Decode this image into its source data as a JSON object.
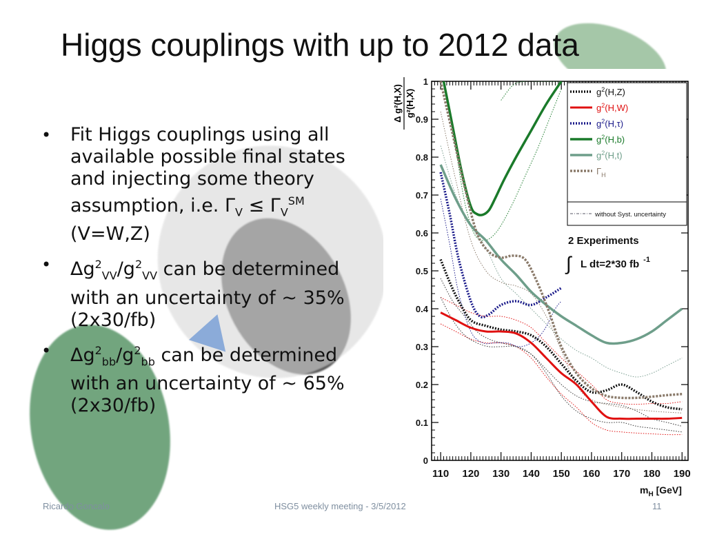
{
  "slide": {
    "title": "Higgs couplings with up to 2012 data",
    "bullets": [
      {
        "main": "Fit Higgs couplings using all available possible final states and injecting some theory assumption, i.e.  Γ",
        "sub1": "V",
        "mid": " ≤ Γ",
        "sub2": "V",
        "sup2": "SM",
        "tail": " (V=W,Z)"
      },
      {
        "p1": "Δg",
        "s1": "2",
        "b1": "VV",
        "p2": "/g",
        "s2": "2",
        "b2": "VV",
        "tail": " can be determined with an uncertainty of ~ 35% (2x30/fb)"
      },
      {
        "p1": "Δg",
        "s1": "2",
        "b1": "bb",
        "p2": "/g",
        "s2": "2",
        "b2": "bb",
        "tail": " can be determined with an uncertainty of ~ 65% (2x30/fb)"
      }
    ],
    "bullet_symbol": "•"
  },
  "footer": {
    "author": "Ricardo Goncalo",
    "meeting": "HSG5 weekly meeting - 3/5/2012",
    "page": "11"
  },
  "chart_data": {
    "type": "line",
    "ylabel_num": "Δ g²(H,X)",
    "ylabel_den": "g²(H,X)",
    "xlabel": "m",
    "xlabel_sub": "H",
    "xlabel_unit": " [GeV]",
    "xlim": [
      107,
      192
    ],
    "ylim": [
      0,
      1
    ],
    "xticks": [
      110,
      120,
      130,
      140,
      150,
      160,
      170,
      180,
      190
    ],
    "yticks": [
      0,
      0.1,
      0.2,
      0.3,
      0.4,
      0.5,
      0.6,
      0.7,
      0.8,
      0.9,
      1
    ],
    "ytick_labels": [
      "0",
      "0.1",
      "0.2",
      "0.3",
      "0.4",
      "0.5",
      "0.6",
      "0.7",
      "0.8",
      "0.9",
      "1"
    ],
    "legend_position": "top-right",
    "annotation_line1": "2 Experiments",
    "annotation_integral": "∫",
    "annotation_line2": "L dt=2*30 fb",
    "annotation_sup": "-1",
    "series": [
      {
        "label": "g",
        "label_sup": "2",
        "label_rest": "(H,Z)",
        "color": "#111111",
        "dash": "2,2",
        "width": 3.5,
        "x": [
          110,
          113,
          116,
          120,
          125,
          130,
          135,
          140,
          145,
          150,
          155,
          160,
          165,
          170,
          175,
          180,
          185,
          190
        ],
        "y": [
          0.53,
          0.47,
          0.42,
          0.37,
          0.355,
          0.345,
          0.34,
          0.33,
          0.3,
          0.255,
          0.21,
          0.18,
          0.185,
          0.2,
          0.18,
          0.155,
          0.14,
          0.135
        ]
      },
      {
        "label": "g",
        "label_sup": "2",
        "label_rest": "(H,W)",
        "color": "#e01010",
        "dash": "",
        "width": 3,
        "x": [
          110,
          115,
          120,
          125,
          130,
          135,
          140,
          145,
          150,
          155,
          160,
          165,
          170,
          175,
          180,
          185,
          190
        ],
        "y": [
          0.39,
          0.37,
          0.35,
          0.34,
          0.34,
          0.335,
          0.31,
          0.27,
          0.23,
          0.2,
          0.155,
          0.115,
          0.11,
          0.11,
          0.11,
          0.11,
          0.112
        ]
      },
      {
        "label": "g",
        "label_sup": "2",
        "label_rest": "(H,τ)",
        "color": "#1a1a8a",
        "dash": "2,2",
        "width": 3.5,
        "x": [
          110,
          113,
          116,
          120,
          123,
          126,
          130,
          135,
          140,
          145,
          150
        ],
        "y": [
          0.76,
          0.65,
          0.53,
          0.42,
          0.38,
          0.385,
          0.41,
          0.42,
          0.41,
          0.43,
          0.455
        ]
      },
      {
        "label": "g",
        "label_sup": "2",
        "label_rest": "(H,b)",
        "color": "#1a7a2a",
        "dash": "",
        "width": 3.5,
        "x": [
          111,
          114,
          117,
          120,
          122,
          124,
          126,
          128,
          131,
          135,
          140,
          145,
          150
        ],
        "y": [
          1.0,
          0.88,
          0.76,
          0.67,
          0.65,
          0.648,
          0.66,
          0.69,
          0.74,
          0.8,
          0.87,
          0.94,
          1.0
        ]
      },
      {
        "label": "g",
        "label_sup": "2",
        "label_rest": "(H,t)",
        "color": "#6e9e8a",
        "dash": "",
        "width": 3.5,
        "x": [
          110,
          115,
          120,
          125,
          130,
          135,
          140,
          145,
          150,
          155,
          160,
          165,
          170,
          175,
          180,
          185,
          190
        ],
        "y": [
          0.78,
          0.69,
          0.62,
          0.58,
          0.53,
          0.49,
          0.445,
          0.41,
          0.38,
          0.355,
          0.33,
          0.31,
          0.31,
          0.32,
          0.34,
          0.37,
          0.4
        ]
      },
      {
        "label": "Γ",
        "label_sup": "",
        "label_sub": "H",
        "label_rest": "",
        "color": "#8a7a6a",
        "dash": "3,2",
        "width": 3.5,
        "x": [
          110,
          114,
          118,
          122,
          126,
          130,
          134,
          138,
          142,
          146,
          150,
          155,
          160,
          165,
          170,
          175,
          180,
          185,
          190
        ],
        "y": [
          1.0,
          0.86,
          0.72,
          0.6,
          0.55,
          0.535,
          0.54,
          0.53,
          0.47,
          0.39,
          0.3,
          0.23,
          0.19,
          0.17,
          0.165,
          0.165,
          0.168,
          0.172,
          0.175
        ]
      }
    ],
    "nosyst_label": "without Syst. uncertainty",
    "nosyst_color": "#555566",
    "nosyst_curves": [
      {
        "color": "#e01010",
        "x": [
          110,
          115,
          120,
          125,
          130,
          135,
          140,
          145,
          150,
          155,
          160,
          165,
          170,
          175,
          180,
          185,
          190
        ],
        "y": [
          0.36,
          0.34,
          0.32,
          0.31,
          0.31,
          0.3,
          0.27,
          0.22,
          0.175,
          0.14,
          0.1,
          0.08,
          0.075,
          0.072,
          0.07,
          0.068,
          0.068
        ]
      },
      {
        "color": "#e01010",
        "x": [
          110,
          115,
          120,
          125,
          130,
          135,
          140,
          145,
          150,
          155,
          160,
          165,
          170,
          175,
          180,
          185,
          190
        ],
        "y": [
          0.43,
          0.41,
          0.39,
          0.38,
          0.38,
          0.37,
          0.35,
          0.31,
          0.27,
          0.235,
          0.2,
          0.16,
          0.15,
          0.148,
          0.15,
          0.15,
          0.155
        ]
      },
      {
        "color": "#7a9e90",
        "x": [
          110,
          115,
          120,
          125,
          130,
          135,
          140,
          145,
          150,
          155,
          160,
          165,
          170,
          175,
          180,
          185,
          190
        ],
        "y": [
          0.83,
          0.7,
          0.62,
          0.56,
          0.48,
          0.44,
          0.4,
          0.36,
          0.32,
          0.29,
          0.27,
          0.245,
          0.23,
          0.22,
          0.23,
          0.25,
          0.27
        ]
      },
      {
        "color": "#1a7a2a",
        "x": [
          111,
          115,
          118,
          121,
          124,
          127,
          130,
          134,
          138,
          142,
          146,
          150
        ],
        "y": [
          1.0,
          0.82,
          0.68,
          0.6,
          0.58,
          0.59,
          0.62,
          0.68,
          0.75,
          0.82,
          0.9,
          0.98
        ]
      },
      {
        "color": "#1a7a2a",
        "x": [
          130,
          134,
          138,
          142,
          146,
          150
        ],
        "y": [
          0.95,
          0.99,
          1.0,
          1.0,
          1.0,
          1.0
        ]
      },
      {
        "color": "#333333",
        "x": [
          110,
          114,
          118,
          122,
          126,
          130,
          135,
          140,
          145,
          150,
          155,
          160,
          165,
          170,
          175,
          180,
          185,
          190
        ],
        "y": [
          0.48,
          0.42,
          0.38,
          0.34,
          0.32,
          0.31,
          0.3,
          0.28,
          0.24,
          0.2,
          0.17,
          0.155,
          0.15,
          0.145,
          0.13,
          0.11,
          0.1,
          0.09
        ]
      },
      {
        "color": "#333333",
        "x": [
          110,
          114,
          118,
          122,
          126,
          130,
          135,
          140,
          145,
          150,
          155,
          160,
          165,
          170,
          175,
          180,
          185,
          190
        ],
        "y": [
          0.43,
          0.37,
          0.33,
          0.31,
          0.3,
          0.3,
          0.3,
          0.28,
          0.23,
          0.17,
          0.13,
          0.11,
          0.1,
          0.1,
          0.09,
          0.085,
          0.08,
          0.075
        ]
      },
      {
        "color": "#1a1a8a",
        "x": [
          110,
          113,
          116,
          120,
          124,
          128,
          132,
          136,
          140,
          144,
          148,
          150
        ],
        "y": [
          0.69,
          0.57,
          0.44,
          0.34,
          0.31,
          0.31,
          0.31,
          0.3,
          0.31,
          0.34,
          0.4,
          0.42
        ]
      },
      {
        "color": "#8a7a6a",
        "x": [
          110,
          115,
          120,
          125,
          130,
          135,
          140,
          145,
          150,
          155,
          160,
          170,
          180,
          190
        ],
        "y": [
          0.92,
          0.74,
          0.58,
          0.5,
          0.47,
          0.46,
          0.44,
          0.38,
          0.29,
          0.2,
          0.16,
          0.14,
          0.13,
          0.125
        ]
      }
    ]
  }
}
